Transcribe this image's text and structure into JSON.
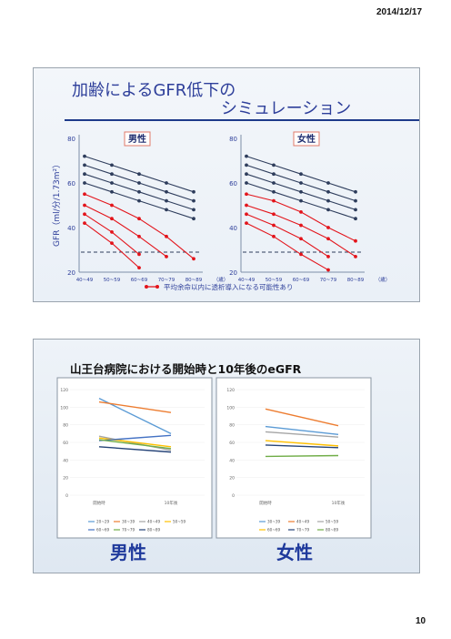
{
  "header": {
    "date": "2014/12/17"
  },
  "footer": {
    "page": "10"
  },
  "slide1": {
    "title_line1": "加齢によるGFR低下の",
    "title_line2": "シミュレーション",
    "ylabel": "GFR（ml/分/1.73m²）",
    "legend": "平均余命以内に透析導入になる可能性あり",
    "panels": [
      {
        "label": "男性",
        "yticks": [
          "80",
          "60",
          "40",
          "20"
        ],
        "xticks": [
          "40~49",
          "50~59",
          "60~69",
          "70~79",
          "80~89",
          "（歳）"
        ]
      },
      {
        "label": "女性",
        "yticks": [
          "80",
          "60",
          "40",
          "20"
        ],
        "xticks": [
          "40~49",
          "50~59",
          "60~69",
          "70~79",
          "80~89",
          "（歳）"
        ]
      }
    ],
    "colors": {
      "dark": "#2e3d5c",
      "red": "#e3141b",
      "dash": "#2e3d5c"
    }
  },
  "slide2": {
    "title": "山王台病院における開始時と10年後のeGFR",
    "yticks": [
      "120",
      "100",
      "80",
      "60",
      "40",
      "20",
      "0"
    ],
    "xcats": [
      "開始時",
      "10年後"
    ],
    "left_label": "男性",
    "right_label": "女性",
    "legend_m_row1": [
      "20~29",
      "30~39",
      "40~49",
      "50~59"
    ],
    "legend_m_row2": [
      "60~69",
      "70~79",
      "80~89"
    ],
    "legend_f_row1": [
      "30~39",
      "40~49",
      "50~59"
    ],
    "legend_f_row2": [
      "60~69",
      "70~79",
      "80~89"
    ]
  },
  "chart_data": [
    {
      "type": "line",
      "title": "男性",
      "categories": [
        "40~49",
        "50~59",
        "60~69",
        "70~79",
        "80~89"
      ],
      "ylim": [
        20,
        80
      ],
      "ylabel": "GFR（ml/分/1.73m²）",
      "series": [
        {
          "values": [
            72,
            68,
            64,
            60,
            56
          ],
          "color": "#2e3d5c"
        },
        {
          "values": [
            68,
            64,
            60,
            56,
            52
          ],
          "color": "#2e3d5c"
        },
        {
          "values": [
            64,
            60,
            56,
            52,
            48
          ],
          "color": "#2e3d5c"
        },
        {
          "values": [
            60,
            56,
            52,
            48,
            44
          ],
          "color": "#2e3d5c"
        },
        {
          "values": [
            55,
            50,
            44,
            36,
            26
          ],
          "color": "#e3141b"
        },
        {
          "values": [
            50,
            44,
            36,
            27,
            null
          ],
          "color": "#e3141b"
        },
        {
          "values": [
            46,
            38,
            28,
            null,
            null
          ],
          "color": "#e3141b"
        },
        {
          "values": [
            42,
            33,
            22,
            null,
            null
          ],
          "color": "#e3141b"
        }
      ],
      "threshold": 29
    },
    {
      "type": "line",
      "title": "女性",
      "categories": [
        "40~49",
        "50~59",
        "60~69",
        "70~79",
        "80~89"
      ],
      "ylim": [
        20,
        80
      ],
      "series": [
        {
          "values": [
            72,
            68,
            64,
            60,
            56
          ],
          "color": "#2e3d5c"
        },
        {
          "values": [
            68,
            64,
            60,
            56,
            52
          ],
          "color": "#2e3d5c"
        },
        {
          "values": [
            64,
            60,
            56,
            52,
            48
          ],
          "color": "#2e3d5c"
        },
        {
          "values": [
            60,
            56,
            52,
            48,
            44
          ],
          "color": "#2e3d5c"
        },
        {
          "values": [
            55,
            52,
            47,
            40,
            34
          ],
          "color": "#e3141b"
        },
        {
          "values": [
            50,
            46,
            41,
            35,
            27
          ],
          "color": "#e3141b"
        },
        {
          "values": [
            46,
            41,
            35,
            27,
            null
          ],
          "color": "#e3141b"
        },
        {
          "values": [
            42,
            36,
            28,
            21,
            null
          ],
          "color": "#e3141b"
        }
      ],
      "threshold": 29
    },
    {
      "type": "line",
      "title": "男性",
      "categories": [
        "開始時",
        "10年後"
      ],
      "ylim": [
        0,
        120
      ],
      "series": [
        {
          "name": "20~29",
          "values": [
            110,
            70
          ],
          "color": "#5b9bd5"
        },
        {
          "name": "30~39",
          "values": [
            106,
            94
          ],
          "color": "#ed7d31"
        },
        {
          "name": "40~49",
          "values": [
            67,
            51
          ],
          "color": "#a5a5a5"
        },
        {
          "name": "50~59",
          "values": [
            65,
            55
          ],
          "color": "#ffc000"
        },
        {
          "name": "60~69",
          "values": [
            62,
            68
          ],
          "color": "#4472c4"
        },
        {
          "name": "70~79",
          "values": [
            63,
            53
          ],
          "color": "#70ad47"
        },
        {
          "name": "80~89",
          "values": [
            55,
            49
          ],
          "color": "#264478"
        }
      ]
    },
    {
      "type": "line",
      "title": "女性",
      "categories": [
        "開始時",
        "10年後"
      ],
      "ylim": [
        0,
        120
      ],
      "series": [
        {
          "name": "30~39",
          "values": [
            78,
            69
          ],
          "color": "#5b9bd5"
        },
        {
          "name": "40~49",
          "values": [
            98,
            79
          ],
          "color": "#ed7d31"
        },
        {
          "name": "50~59",
          "values": [
            72,
            66
          ],
          "color": "#a5a5a5"
        },
        {
          "name": "60~69",
          "values": [
            62,
            56
          ],
          "color": "#ffc000"
        },
        {
          "name": "70~79",
          "values": [
            57,
            54
          ],
          "color": "#264478"
        },
        {
          "name": "80~89",
          "values": [
            44,
            45
          ],
          "color": "#70ad47"
        }
      ]
    }
  ]
}
